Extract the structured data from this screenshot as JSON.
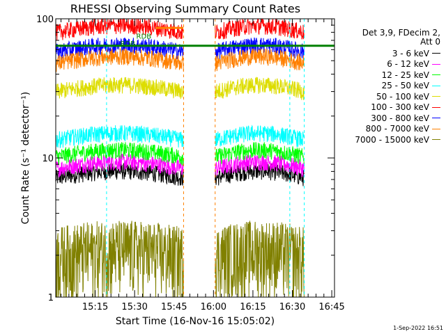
{
  "chart_data": {
    "type": "line",
    "title": "RHESSI Observing Summary Count Rates",
    "xlabel": "Start Time (16-Nov-16 15:05:02)",
    "ylabel": "Count Rate (s⁻¹ detector⁻¹)",
    "y_scale": "log",
    "ylim": [
      1,
      100
    ],
    "x_ticks": [
      "15:15",
      "15:30",
      "15:45",
      "16:00",
      "16:15",
      "16:30",
      "16:45"
    ],
    "y_ticks": [
      "1",
      "10",
      "100"
    ],
    "xlim_minutes_after_start": [
      -5.03,
      101.0
    ],
    "legend": {
      "placement": "right",
      "header_lines": [
        "Det 3,9, FDecim 2,",
        "Att 0"
      ],
      "entries": [
        {
          "label": "3 - 6 keV",
          "color": "#000000"
        },
        {
          "label": "6 - 12 keV",
          "color": "#ff00ff"
        },
        {
          "label": "12 - 25 keV",
          "color": "#00ff00"
        },
        {
          "label": "25 - 50 keV",
          "color": "#00ffff"
        },
        {
          "label": "50 - 100 keV",
          "color": "#dddd00"
        },
        {
          "label": "100 - 300 keV",
          "color": "#ff0000"
        },
        {
          "label": "300 - 800 keV",
          "color": "#0000ff"
        },
        {
          "label": "800 - 7000 keV",
          "color": "#ff8000"
        },
        {
          "label": "7000 - 15000 keV",
          "color": "#808000"
        }
      ]
    },
    "annotations": [
      {
        "text": "RDB",
        "color": "#008000",
        "x_minute": 25.6,
        "y": 72
      },
      {
        "text": "RDB",
        "color": "#008000",
        "x_minute": 19.5,
        "y": 64
      }
    ],
    "segments_minutes_after_start": [
      [
        -5.03,
        43.6
      ],
      [
        55.6,
        89.5
      ]
    ],
    "series": [
      {
        "label": "3 - 6 keV",
        "color": "#000000",
        "base": 7.2
      },
      {
        "label": "6 - 12 keV",
        "color": "#ff00ff",
        "base": 8.4
      },
      {
        "label": "12 - 25 keV",
        "color": "#00ff00",
        "base": 10.2
      },
      {
        "label": "25 - 50 keV",
        "color": "#00ffff",
        "base": 13.5
      },
      {
        "label": "50 - 100 keV",
        "color": "#dddd00",
        "base": 30
      },
      {
        "label": "100 - 300 keV",
        "color": "#ff0000",
        "base": 80
      },
      {
        "label": "300 - 800 keV",
        "color": "#0000ff",
        "base": 58
      },
      {
        "label": "800 - 7000 keV",
        "color": "#ff8000",
        "base": 48
      },
      {
        "label": "7000 - 15000 keV",
        "color": "#808000",
        "base": 2.0
      }
    ]
  },
  "footer": {
    "date": "1-Sep-2022 16:51"
  }
}
